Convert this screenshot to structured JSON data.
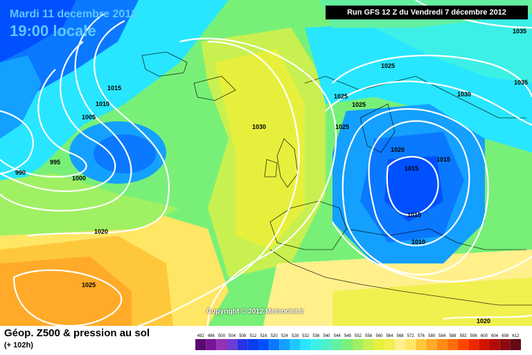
{
  "header": {
    "date": "Mardi 11 decembre 2012",
    "time": "19:00 locale",
    "run": "Run GFS 12 Z du Vendredi 7 décembre 2012"
  },
  "copyright": "Copyright © 2012 Meteociel.fr",
  "legend": {
    "title": "Géop. Z500 & pression au sol",
    "subtitle": "(+ 102h)",
    "ticks": [
      "492",
      "496",
      "500",
      "504",
      "508",
      "512",
      "516",
      "520",
      "524",
      "528",
      "532",
      "536",
      "540",
      "544",
      "548",
      "552",
      "556",
      "560",
      "564",
      "568",
      "572",
      "576",
      "580",
      "584",
      "588",
      "592",
      "596",
      "600",
      "604",
      "608",
      "612"
    ],
    "colors": [
      "#5a0a6e",
      "#781496",
      "#9630b4",
      "#6e3cd2",
      "#2832e6",
      "#0a3cf0",
      "#0050ff",
      "#0a78ff",
      "#14a0ff",
      "#1ec8ff",
      "#28e6ff",
      "#3cf0e6",
      "#50f0c8",
      "#64f0a0",
      "#78f078",
      "#a0f064",
      "#c8f050",
      "#e6f03c",
      "#f0f050",
      "#fff08c",
      "#ffe664",
      "#ffc83c",
      "#ffaa28",
      "#ff8c14",
      "#ff6e0a",
      "#ff4600",
      "#f02800",
      "#d21400",
      "#b40a0a",
      "#8c0a14",
      "#640a14"
    ]
  },
  "isobar_labels": [
    {
      "text": "1015"
    },
    {
      "text": "1010"
    },
    {
      "text": "1005"
    },
    {
      "text": "995"
    },
    {
      "text": "990"
    },
    {
      "text": "1000"
    },
    {
      "text": "1030"
    },
    {
      "text": "1025"
    },
    {
      "text": "1025"
    },
    {
      "text": "1025"
    },
    {
      "text": "1025"
    },
    {
      "text": "1030"
    },
    {
      "text": "1020"
    },
    {
      "text": "1015"
    },
    {
      "text": "1015"
    },
    {
      "text": "1015"
    },
    {
      "text": "1010"
    },
    {
      "text": "1020"
    },
    {
      "text": "1025"
    },
    {
      "text": "1035"
    },
    {
      "text": "1035"
    },
    {
      "text": "1020"
    }
  ]
}
